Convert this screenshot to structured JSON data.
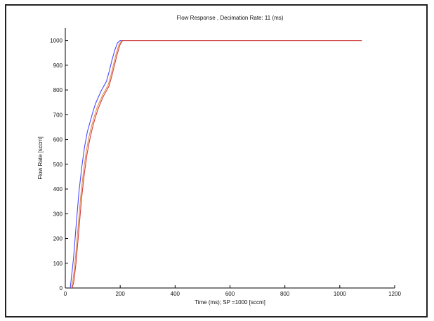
{
  "chart_data": {
    "type": "line",
    "title": "Flow Response , Decimation Rate: 11 (ms)",
    "xlabel": "Time (ms); SP =1000 [sccm]",
    "ylabel": "Flow Rate [sccm]",
    "xlim": [
      0,
      1200
    ],
    "ylim": [
      0,
      1050
    ],
    "xticks": [
      0,
      200,
      400,
      600,
      800,
      1000,
      1200
    ],
    "yticks": [
      0,
      100,
      200,
      300,
      400,
      500,
      600,
      700,
      800,
      900,
      1000
    ],
    "grid": false,
    "legend": "none",
    "series": [
      {
        "color": "#4a4aff",
        "x": [
          18,
          22,
          30,
          40,
          50,
          60,
          70,
          80,
          90,
          100,
          110,
          120,
          130,
          140,
          150,
          160,
          170,
          180,
          190,
          200,
          1080
        ],
        "y": [
          0,
          40,
          120,
          260,
          390,
          490,
          570,
          630,
          670,
          710,
          745,
          770,
          795,
          815,
          835,
          875,
          920,
          960,
          990,
          1000,
          1000
        ]
      },
      {
        "color": "#e0904a",
        "x": [
          22,
          28,
          36,
          46,
          56,
          66,
          76,
          86,
          96,
          106,
          116,
          126,
          136,
          146,
          156,
          166,
          176,
          186,
          196,
          206,
          1080
        ],
        "y": [
          0,
          30,
          110,
          240,
          370,
          470,
          550,
          610,
          655,
          695,
          730,
          755,
          780,
          800,
          820,
          860,
          905,
          950,
          985,
          1000,
          1000
        ]
      },
      {
        "color": "#d23c3c",
        "x": [
          25,
          31,
          39,
          49,
          59,
          69,
          79,
          89,
          99,
          109,
          119,
          129,
          139,
          149,
          159,
          169,
          179,
          189,
          199,
          209,
          1080
        ],
        "y": [
          0,
          25,
          100,
          230,
          360,
          460,
          540,
          600,
          648,
          688,
          722,
          750,
          775,
          795,
          815,
          855,
          900,
          945,
          982,
          1000,
          1000
        ]
      }
    ]
  }
}
